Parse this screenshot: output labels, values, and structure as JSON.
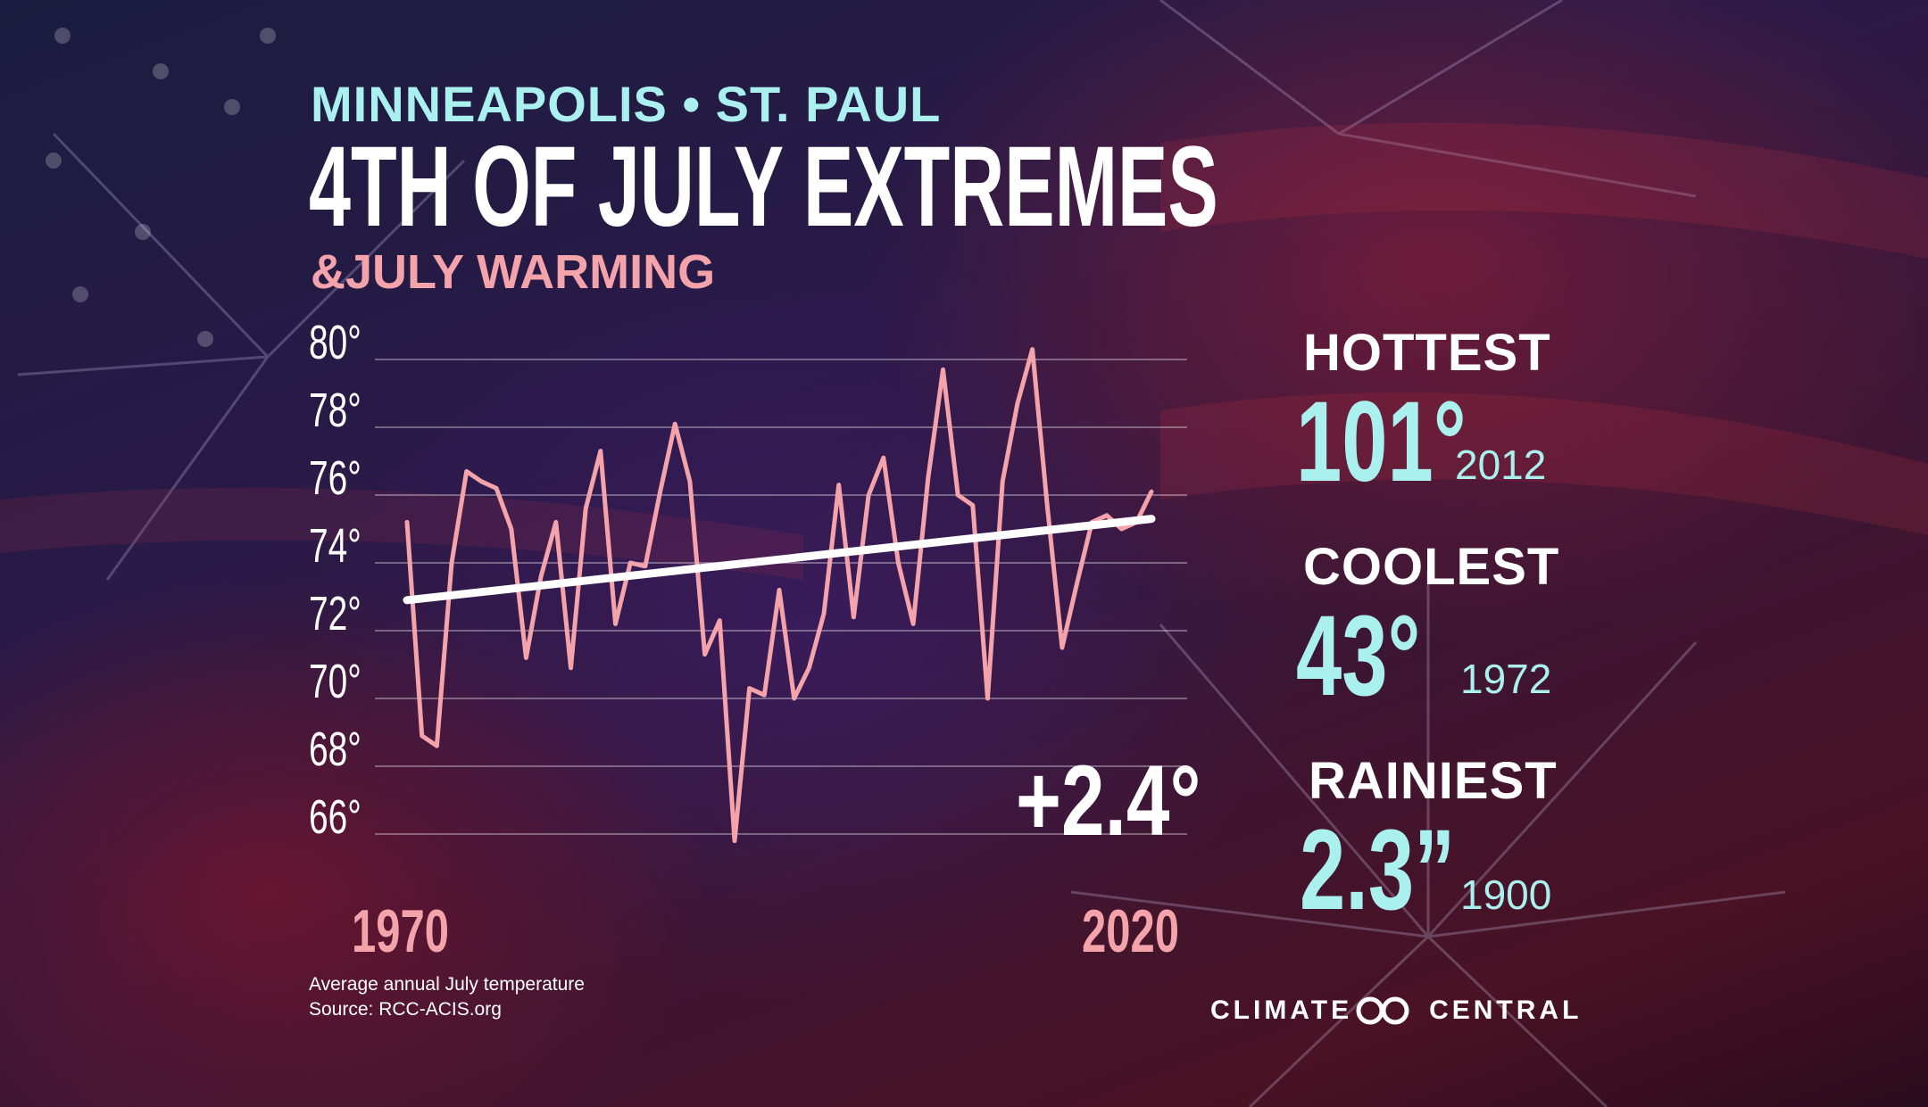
{
  "header": {
    "city": "MINNEAPOLIS • ST. PAUL",
    "title": "4TH OF JULY EXTREMES",
    "subtitle": "&JULY WARMING"
  },
  "chart_data": {
    "type": "line",
    "title": "",
    "xlabel": "",
    "ylabel": "",
    "xlim": [
      1970,
      2020
    ],
    "ylim": [
      65,
      80
    ],
    "ytick_labels": [
      "80°",
      "78°",
      "76°",
      "74°",
      "72°",
      "70°",
      "68°",
      "66°"
    ],
    "x_endpoint_labels": [
      "1970",
      "2020"
    ],
    "grid": true,
    "series": [
      {
        "color": "#f4a3aa",
        "x": [
          1970,
          1971,
          1972,
          1973,
          1974,
          1975,
          1976,
          1977,
          1978,
          1979,
          1980,
          1981,
          1982,
          1983,
          1984,
          1985,
          1986,
          1987,
          1988,
          1989,
          1990,
          1991,
          1992,
          1993,
          1994,
          1995,
          1996,
          1997,
          1998,
          1999,
          2000,
          2001,
          2002,
          2003,
          2004,
          2005,
          2006,
          2007,
          2008,
          2009,
          2010,
          2011,
          2012,
          2013,
          2014,
          2015,
          2016,
          2017,
          2018,
          2019,
          2020
        ],
        "values": [
          75.2,
          68.9,
          68.6,
          74.0,
          76.7,
          76.4,
          76.2,
          75.0,
          71.2,
          73.6,
          75.2,
          70.9,
          75.6,
          77.3,
          72.2,
          74.0,
          73.9,
          76.1,
          78.1,
          76.4,
          71.3,
          72.3,
          65.8,
          70.3,
          70.1,
          73.2,
          70.0,
          70.9,
          72.5,
          76.3,
          72.4,
          76.0,
          77.1,
          74.0,
          72.2,
          76.5,
          79.7,
          76.0,
          75.7,
          70.0,
          76.4,
          78.7,
          80.3,
          75.7,
          71.5,
          73.4,
          75.2,
          75.4,
          75.0,
          75.2,
          76.1
        ]
      },
      {
        "name": "",
        "color": "#ffffff",
        "x": [
          1970,
          2020
        ],
        "values": [
          72.9,
          75.3
        ]
      }
    ],
    "annotations": [
      "+2.4°"
    ]
  },
  "stats": [
    {
      "label": "HOTTEST",
      "value": "101°",
      "year": "2012"
    },
    {
      "label": "COOLEST",
      "value": "43°",
      "year": "1972"
    },
    {
      "label": "RAINIEST",
      "value": "2.3”",
      "year": "1900"
    }
  ],
  "footer": {
    "note1": "Average annual July temperature",
    "note2": "Source:  RCC-ACIS.org",
    "brand_left": "CLIMATE",
    "brand_right": "CENTRAL",
    "brand_icon": "infinity-rings-icon"
  }
}
